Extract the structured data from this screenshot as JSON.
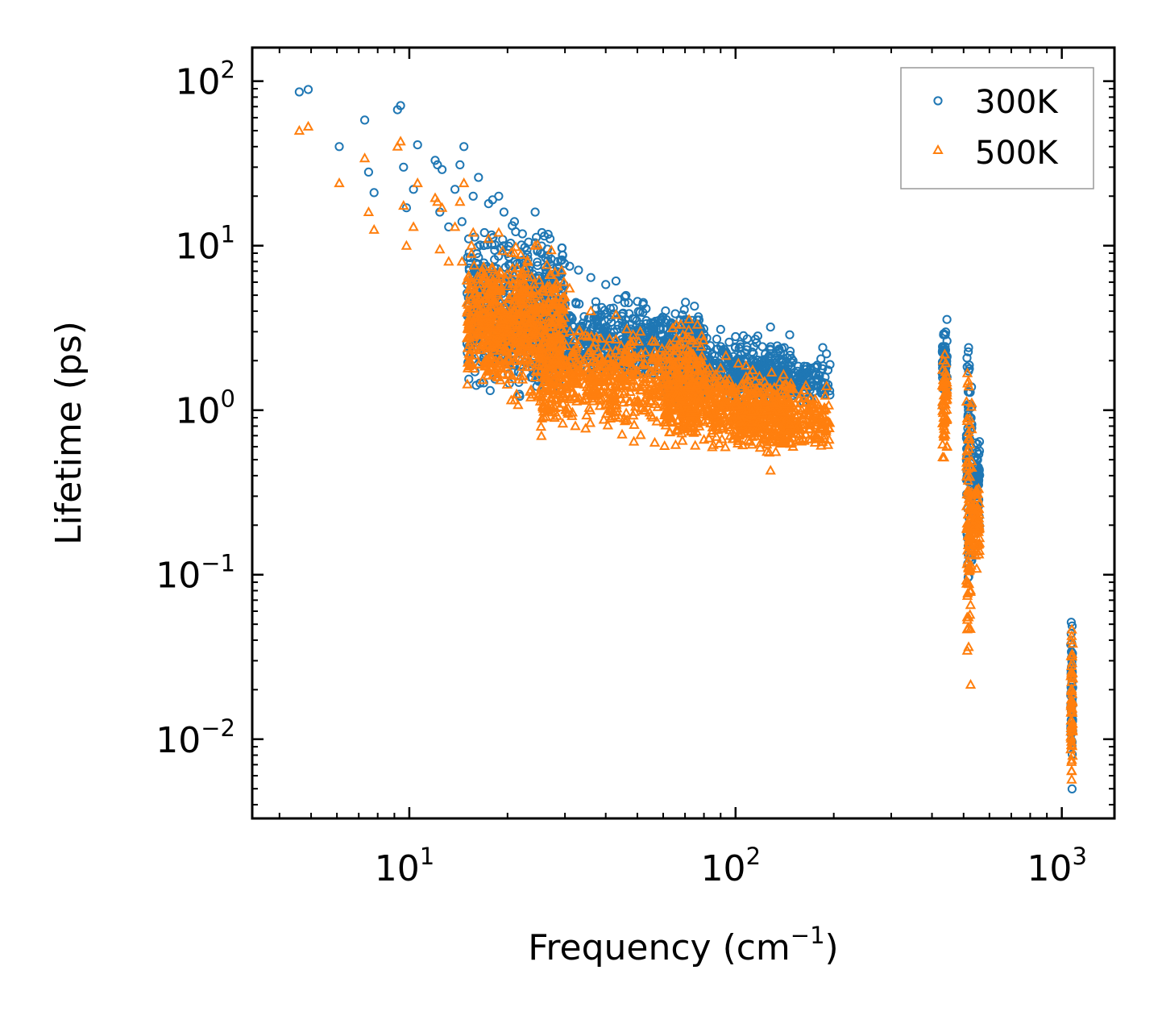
{
  "chart_data": {
    "type": "scatter",
    "title": "",
    "xlabel": "Frequency (cm",
    "xlabel_sup": "−1",
    "xlabel_tail": ")",
    "ylabel": "Lifetime (ps)",
    "xscale": "log",
    "yscale": "log",
    "xlim": [
      3.3,
      1450
    ],
    "ylim": [
      0.0033,
      160
    ],
    "x_ticks": [
      {
        "value": 10,
        "base": "10",
        "exp": "1"
      },
      {
        "value": 100,
        "base": "10",
        "exp": "2"
      },
      {
        "value": 1000,
        "base": "10",
        "exp": "3"
      }
    ],
    "y_ticks": [
      {
        "value": 0.01,
        "base": "10",
        "exp": "−2"
      },
      {
        "value": 0.1,
        "base": "10",
        "exp": "−1"
      },
      {
        "value": 1,
        "base": "10",
        "exp": "0"
      },
      {
        "value": 10,
        "base": "10",
        "exp": "1"
      },
      {
        "value": 100,
        "base": "10",
        "exp": "2"
      }
    ],
    "legend_position": "top-right",
    "series": [
      {
        "name": "300K",
        "color": "#1f77b4",
        "marker": "circle",
        "points": [
          [
            4.6,
            86
          ],
          [
            4.9,
            89
          ],
          [
            6.1,
            40
          ],
          [
            7.3,
            58
          ],
          [
            7.5,
            28
          ],
          [
            7.8,
            21
          ],
          [
            9.2,
            67
          ],
          [
            9.4,
            71
          ],
          [
            9.6,
            30
          ],
          [
            9.8,
            17
          ],
          [
            10.6,
            41
          ],
          [
            10.3,
            22
          ],
          [
            12,
            33
          ],
          [
            12.2,
            31
          ],
          [
            12.6,
            29
          ],
          [
            12.4,
            16
          ],
          [
            13.2,
            13
          ],
          [
            13.8,
            22
          ],
          [
            14.3,
            31
          ],
          [
            14.7,
            40
          ],
          [
            14.5,
            14
          ],
          [
            15.2,
            11
          ],
          [
            15.7,
            20
          ],
          [
            16.3,
            26
          ],
          [
            17.5,
            18
          ],
          [
            18,
            19
          ],
          [
            18.8,
            20
          ],
          [
            19.5,
            16
          ],
          [
            17,
            12
          ],
          [
            21,
            14
          ],
          [
            20,
            4.5
          ],
          [
            21.5,
            3.6
          ],
          [
            22.5,
            5.3
          ],
          [
            24.3,
            16
          ],
          [
            25.5,
            12
          ],
          [
            27,
            11
          ],
          [
            28.5,
            8
          ],
          [
            31,
            7.5
          ],
          [
            33,
            7.1
          ],
          [
            36,
            6.4
          ],
          [
            40,
            5.8
          ],
          [
            43,
            6.1
          ],
          [
            47,
            4.5
          ],
          [
            52,
            4.4
          ],
          [
            58,
            3.5
          ],
          [
            63,
            3.3
          ],
          [
            70,
            3.1
          ],
          [
            80,
            2.9
          ],
          [
            90,
            3.1
          ],
          [
            100,
            2.8
          ],
          [
            115,
            2.7
          ],
          [
            128,
            3.2
          ],
          [
            150,
            2
          ],
          [
            170,
            1.8
          ],
          [
            185,
            2.4
          ],
          [
            190,
            2.2
          ]
        ],
        "bands": [
          {
            "x": [
              15,
              30
            ],
            "y": [
              1,
              16
            ]
          },
          {
            "x": [
              25,
              80
            ],
            "y": [
              1.2,
              5.5
            ]
          },
          {
            "x": [
              60,
              150
            ],
            "y": [
              1,
              3.2
            ]
          },
          {
            "x": [
              100,
              195
            ],
            "y": [
              1,
              2.2
            ]
          },
          {
            "x": [
              430,
              445
            ],
            "y": [
              0.9,
              4.2
            ]
          },
          {
            "x": [
              510,
              530
            ],
            "y": [
              0.05,
              4.4
            ]
          },
          {
            "x": [
              540,
              560
            ],
            "y": [
              0.15,
              1
            ]
          },
          {
            "x": [
              1065,
              1080
            ],
            "y": [
              0.004,
              0.09
            ]
          }
        ]
      },
      {
        "name": "500K",
        "color": "#ff7f0e",
        "marker": "triangle",
        "points": [
          [
            4.6,
            50
          ],
          [
            4.9,
            53
          ],
          [
            6.1,
            24
          ],
          [
            7.3,
            34
          ],
          [
            7.5,
            16
          ],
          [
            7.8,
            12.5
          ],
          [
            9.2,
            40
          ],
          [
            9.4,
            43
          ],
          [
            9.6,
            17.5
          ],
          [
            9.8,
            10
          ],
          [
            10.6,
            24
          ],
          [
            10.3,
            13
          ],
          [
            12,
            19.5
          ],
          [
            12.2,
            18.5
          ],
          [
            12.6,
            17
          ],
          [
            12.4,
            9.5
          ],
          [
            13.2,
            8
          ],
          [
            13.8,
            13
          ],
          [
            14.3,
            18.5
          ],
          [
            14.7,
            24
          ],
          [
            14.5,
            8
          ],
          [
            15.2,
            6.5
          ],
          [
            15.7,
            12
          ],
          [
            16.3,
            3.6
          ],
          [
            17.5,
            11
          ],
          [
            18,
            4.5
          ],
          [
            18.8,
            12
          ],
          [
            19.5,
            2.6
          ],
          [
            21,
            9
          ],
          [
            22,
            2.6
          ],
          [
            24.3,
            10
          ],
          [
            26,
            1.7
          ],
          [
            31,
            5.5
          ],
          [
            36,
            4
          ],
          [
            43,
            3.8
          ],
          [
            58,
            2
          ],
          [
            70,
            1.9
          ],
          [
            90,
            1.8
          ],
          [
            115,
            1.5
          ],
          [
            128,
            0.43
          ],
          [
            150,
            0.6
          ],
          [
            190,
            1.4
          ]
        ],
        "bands": [
          {
            "x": [
              15,
              30
            ],
            "y": [
              0.9,
              12
            ]
          },
          {
            "x": [
              25,
              80
            ],
            "y": [
              0.6,
              4
            ]
          },
          {
            "x": [
              60,
              150
            ],
            "y": [
              0.5,
              2.2
            ]
          },
          {
            "x": [
              100,
              195
            ],
            "y": [
              0.5,
              1.5
            ]
          },
          {
            "x": [
              430,
              445
            ],
            "y": [
              0.4,
              2.8
            ]
          },
          {
            "x": [
              510,
              530
            ],
            "y": [
              0.012,
              2.8
            ]
          },
          {
            "x": [
              540,
              560
            ],
            "y": [
              0.1,
              0.5
            ]
          },
          {
            "x": [
              1065,
              1080
            ],
            "y": [
              0.004,
              0.07
            ]
          }
        ]
      }
    ]
  }
}
